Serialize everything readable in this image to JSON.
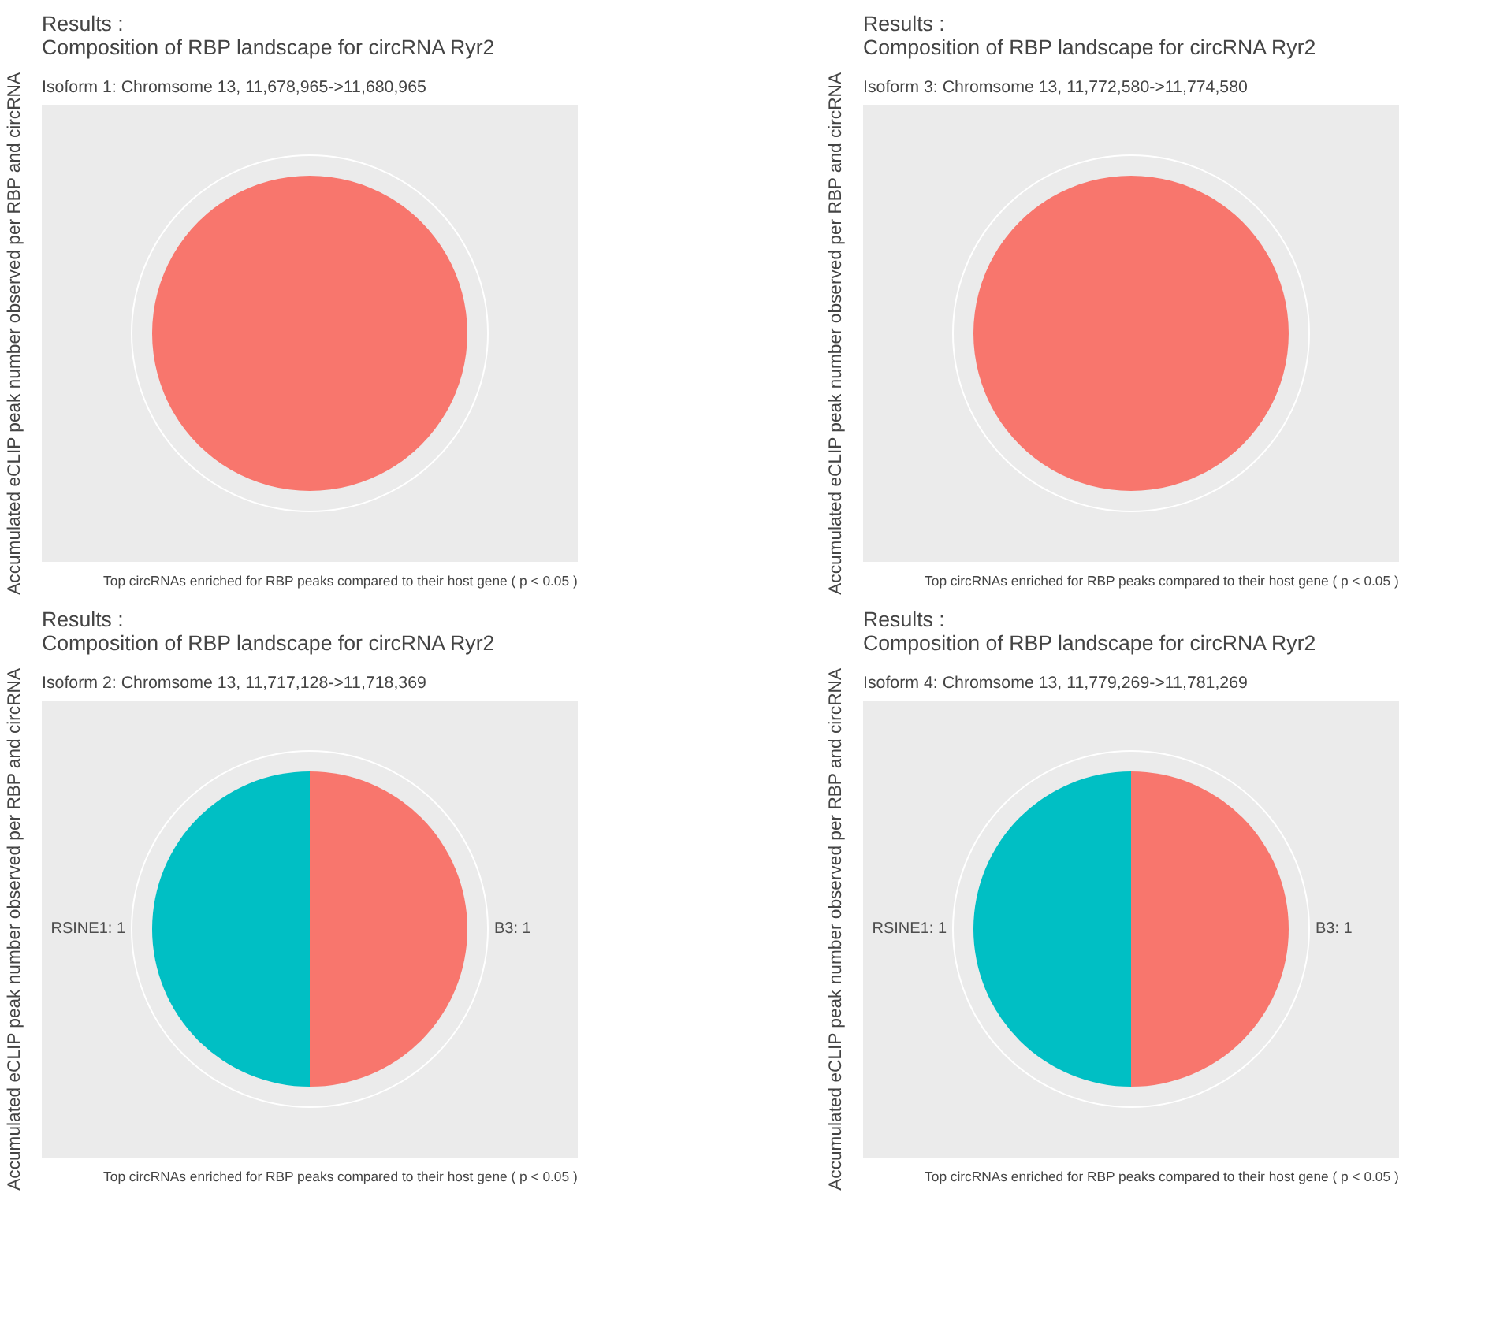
{
  "chart_data": [
    {
      "type": "pie",
      "title": "Results :\nComposition of RBP landscape for circRNA Ryr2",
      "subtitle": "Isoform 1: Chromsome 13, 11,678,965->11,680,965",
      "ylabel": "Accumulated eCLIP peak number observed per RBP and circRNA",
      "categories": [
        null
      ],
      "values": [
        100
      ],
      "colors": [
        "#f8766d"
      ],
      "annotations": [
        "Top circRNAs enriched for RBP peaks compared to their host gene ( p < 0.05 )"
      ]
    },
    {
      "type": "pie",
      "title": "Results :\nComposition of RBP landscape for circRNA Ryr2",
      "subtitle": "Isoform 3: Chromsome 13, 11,772,580->11,774,580",
      "ylabel": "Accumulated eCLIP peak number observed per RBP and circRNA",
      "categories": [
        null
      ],
      "values": [
        100
      ],
      "colors": [
        "#f8766d"
      ],
      "annotations": [
        "Top circRNAs enriched for RBP peaks compared to their host gene ( p < 0.05 )"
      ]
    },
    {
      "type": "pie",
      "title": "Results :\nComposition of RBP landscape for circRNA Ryr2",
      "subtitle": "Isoform 2: Chromsome 13, 11,717,128->11,718,369",
      "ylabel": "Accumulated eCLIP peak number observed per RBP and circRNA",
      "categories": [
        "B3: 1",
        "RSINE1: 1"
      ],
      "values": [
        1,
        1
      ],
      "colors": [
        "#f8766d",
        "#00bfc4"
      ],
      "annotations": [
        "Top circRNAs enriched for RBP peaks compared to their host gene ( p < 0.05 )"
      ]
    },
    {
      "type": "pie",
      "title": "Results :\nComposition of RBP landscape for circRNA Ryr2",
      "subtitle": "Isoform 4: Chromsome 13, 11,779,269->11,781,269",
      "ylabel": "Accumulated eCLIP peak number observed per RBP and circRNA",
      "categories": [
        "B3: 1",
        "RSINE1: 1"
      ],
      "values": [
        1,
        1
      ],
      "colors": [
        "#f8766d",
        "#00bfc4"
      ],
      "annotations": [
        "Top circRNAs enriched for RBP peaks compared to their host gene ( p < 0.05 )"
      ]
    }
  ]
}
